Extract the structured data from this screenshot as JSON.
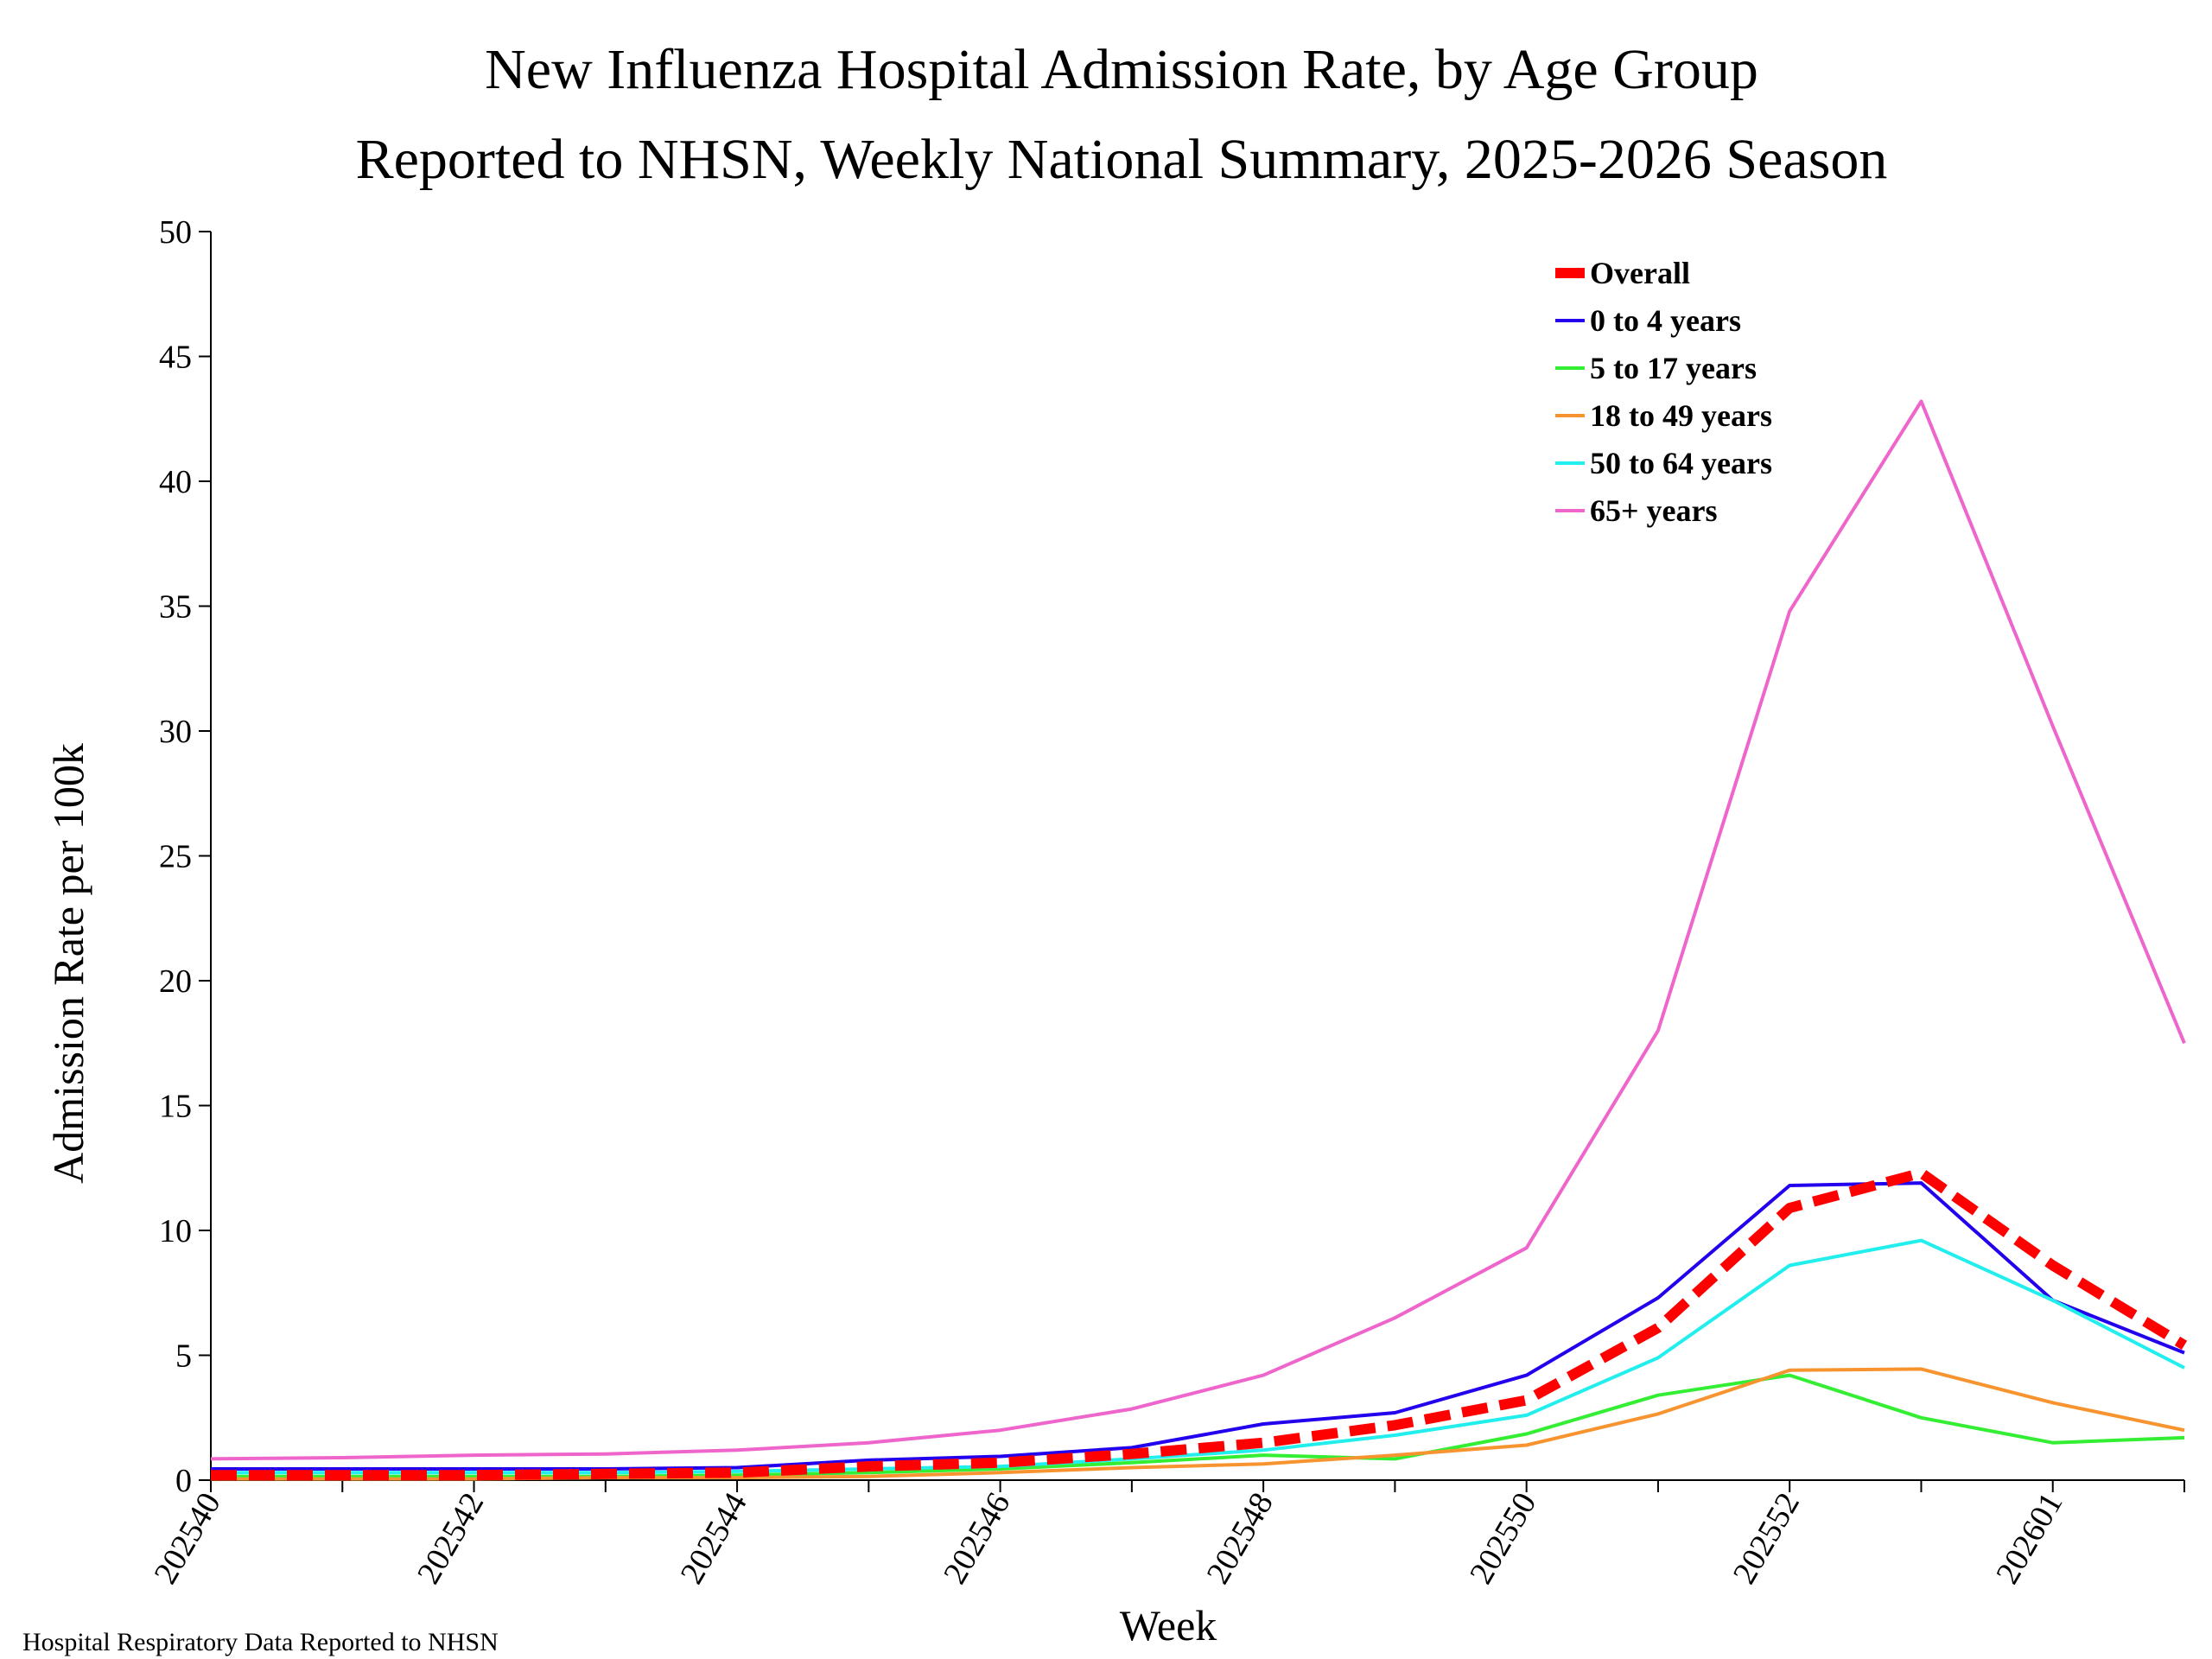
{
  "chart_data": {
    "type": "line",
    "title": "New Influenza Hospital Admission Rate, by Age Group",
    "subtitle": "Reported to NHSN, Weekly National Summary, 2025-2026 Season",
    "xlabel": "Week",
    "ylabel": "Admission Rate per 100k",
    "ylim": [
      0,
      50
    ],
    "yticks": [
      0,
      5,
      10,
      15,
      20,
      25,
      30,
      35,
      40,
      45,
      50
    ],
    "x": [
      "202540",
      "202541",
      "202542",
      "202543",
      "202544",
      "202545",
      "202546",
      "202547",
      "202548",
      "202549",
      "202550",
      "202551",
      "202552",
      "202553",
      "202601",
      "202602"
    ],
    "xtick_labels": [
      "202540",
      "202542",
      "202544",
      "202546",
      "202548",
      "202550",
      "202552",
      "202601"
    ],
    "grid": false,
    "legend_position": "top-right",
    "series": [
      {
        "name": "Overall",
        "color": "#ff0000",
        "style": "dashed",
        "values": [
          0.2,
          0.2,
          0.2,
          0.25,
          0.3,
          0.55,
          0.7,
          1.05,
          1.5,
          2.2,
          3.2,
          6.1,
          10.9,
          12.3,
          8.6,
          5.4
        ]
      },
      {
        "name": "0 to 4 years",
        "color": "#2200ee",
        "style": "solid",
        "values": [
          0.45,
          0.45,
          0.45,
          0.45,
          0.5,
          0.8,
          0.95,
          1.3,
          2.25,
          2.7,
          4.2,
          7.3,
          11.8,
          11.9,
          7.2,
          5.1
        ]
      },
      {
        "name": "5 to 17 years",
        "color": "#33ee33",
        "style": "solid",
        "values": [
          0.15,
          0.15,
          0.15,
          0.15,
          0.2,
          0.3,
          0.45,
          0.7,
          1.0,
          0.85,
          1.85,
          3.4,
          4.2,
          2.5,
          1.5,
          1.7
        ]
      },
      {
        "name": "18 to 49 years",
        "color": "#f79430",
        "style": "solid",
        "values": [
          0.05,
          0.05,
          0.05,
          0.1,
          0.1,
          0.15,
          0.3,
          0.5,
          0.65,
          1.0,
          1.4,
          2.65,
          4.4,
          4.45,
          3.1,
          2.0
        ]
      },
      {
        "name": "50 to 64 years",
        "color": "#22eeee",
        "style": "solid",
        "values": [
          0.3,
          0.3,
          0.3,
          0.3,
          0.35,
          0.45,
          0.55,
          0.85,
          1.2,
          1.8,
          2.6,
          4.9,
          8.6,
          9.6,
          7.2,
          4.5
        ]
      },
      {
        "name": "65+ years",
        "color": "#ee66cc",
        "style": "solid",
        "values": [
          0.85,
          0.9,
          1.0,
          1.05,
          1.2,
          1.5,
          2.0,
          2.85,
          4.2,
          6.5,
          9.3,
          18.0,
          34.8,
          43.2,
          30.2,
          17.5
        ]
      }
    ]
  },
  "footer": "Hospital Respiratory Data Reported to NHSN"
}
